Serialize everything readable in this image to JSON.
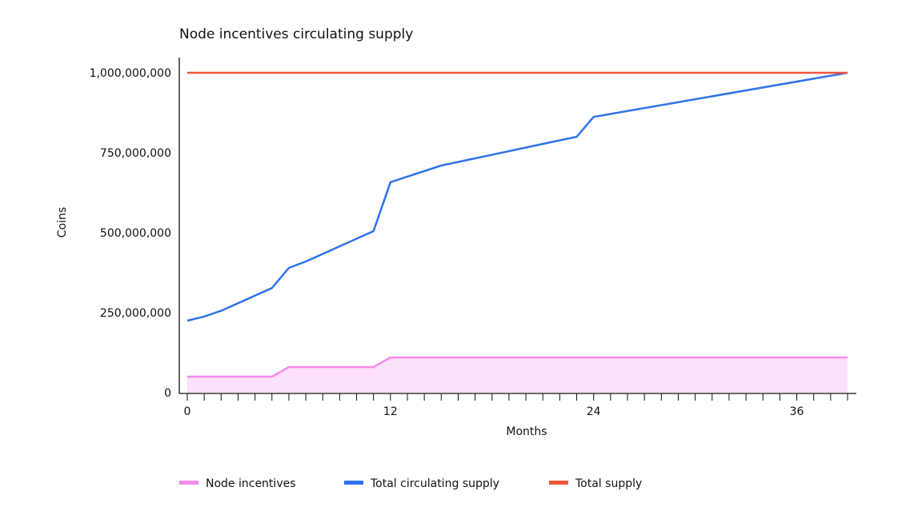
{
  "chart_data": {
    "type": "line",
    "title": "Node incentives circulating supply",
    "xlabel": "Months",
    "ylabel": "Coins",
    "xlim": [
      0,
      39
    ],
    "ylim": [
      0,
      1000000000
    ],
    "x_ticks": [
      {
        "value": 0,
        "label": "0"
      },
      {
        "value": 12,
        "label": "12"
      },
      {
        "value": 24,
        "label": "24"
      },
      {
        "value": 36,
        "label": "36"
      }
    ],
    "y_ticks": [
      {
        "value": 0,
        "label": "0"
      },
      {
        "value": 250000000,
        "label": "250,000,000"
      },
      {
        "value": 500000000,
        "label": "500,000,000"
      },
      {
        "value": 750000000,
        "label": "750,000,000"
      },
      {
        "value": 1000000000,
        "label": "1,000,000,000"
      }
    ],
    "minor_x_ticks_every": 1,
    "grid": false,
    "legend_position": "bottom",
    "series": [
      {
        "name": "Node incentives",
        "color": "#f28bea",
        "fill": "#fde0fb",
        "style": "area",
        "x": [
          0,
          5,
          6,
          11,
          12,
          39
        ],
        "y": [
          50000000,
          50000000,
          80000000,
          80000000,
          110000000,
          110000000
        ]
      },
      {
        "name": "Total circulating supply",
        "color": "#2f73e8",
        "style": "line",
        "x": [
          0,
          1,
          2,
          5,
          6,
          7,
          11,
          12,
          15,
          23,
          24,
          39
        ],
        "y": [
          225000000,
          238000000,
          256000000,
          327000000,
          390000000,
          410000000,
          505000000,
          658000000,
          710000000,
          800000000,
          862000000,
          1000000000
        ]
      },
      {
        "name": "Total supply",
        "color": "#f0553a",
        "style": "line",
        "x": [
          0,
          39
        ],
        "y": [
          1000000000,
          1000000000
        ]
      }
    ]
  }
}
